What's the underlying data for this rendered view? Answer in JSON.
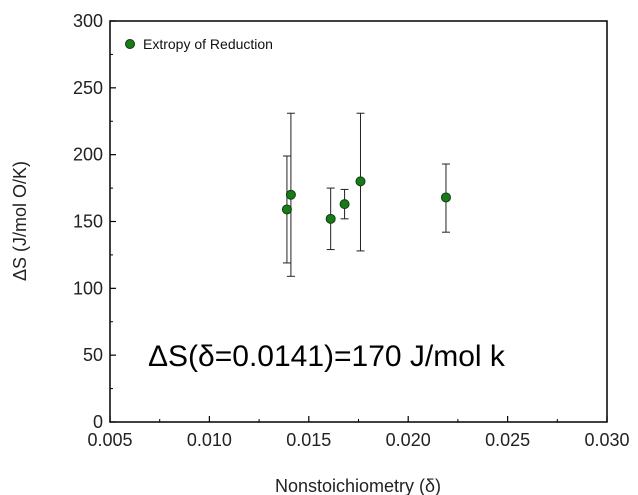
{
  "chart_data": {
    "type": "scatter",
    "xlabel": "Nonstoichiometry (δ)",
    "ylabel": "ΔS (J/mol O/K)",
    "xlim": [
      0.005,
      0.03
    ],
    "ylim": [
      0,
      300
    ],
    "x_ticks": [
      "0.005",
      "0.010",
      "0.015",
      "0.020",
      "0.025",
      "0.030"
    ],
    "y_ticks": [
      "0",
      "50",
      "100",
      "150",
      "200",
      "250",
      "300"
    ],
    "grid": false,
    "legend": "top-left",
    "series": [
      {
        "name": "Extropy of Reduction",
        "color": "#1a7a1a",
        "points": [
          {
            "x": 0.0139,
            "y": 159,
            "err_low": 119,
            "err_high": 199
          },
          {
            "x": 0.0141,
            "y": 170,
            "err_low": 109,
            "err_high": 231
          },
          {
            "x": 0.0161,
            "y": 152,
            "err_low": 129,
            "err_high": 175
          },
          {
            "x": 0.0168,
            "y": 163,
            "err_low": 152,
            "err_high": 174
          },
          {
            "x": 0.0176,
            "y": 180,
            "err_low": 128,
            "err_high": 231
          },
          {
            "x": 0.0219,
            "y": 168,
            "err_low": 142,
            "err_high": 193
          }
        ]
      }
    ],
    "annotation": "ΔS(δ=0.0141)=170 J/mol k"
  }
}
